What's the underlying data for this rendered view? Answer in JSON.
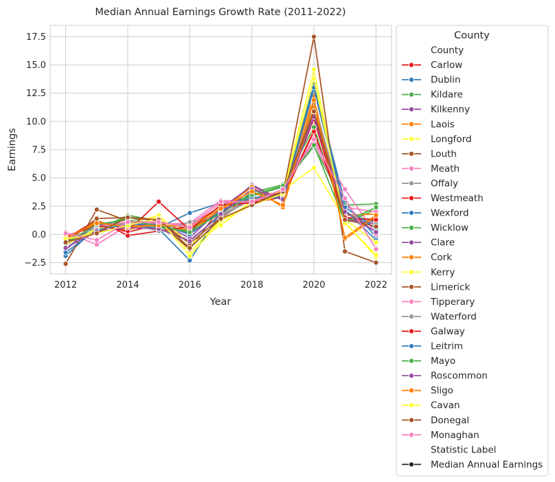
{
  "chart_data": {
    "type": "line",
    "title": "Median Annual Earnings Growth Rate (2011-2022)",
    "xlabel": "Year",
    "ylabel": "Earnings",
    "x": [
      2012,
      2013,
      2014,
      2015,
      2016,
      2017,
      2018,
      2019,
      2020,
      2021,
      2022
    ],
    "xlim": [
      2011.5,
      2022.5
    ],
    "ylim": [
      -3.5,
      18.5
    ],
    "xticks": [
      2012,
      2014,
      2016,
      2018,
      2020,
      2022
    ],
    "yticks": [
      -2.5,
      0.0,
      2.5,
      5.0,
      7.5,
      10.0,
      12.5,
      15.0,
      17.5
    ],
    "ytick_labels": [
      "−2.5",
      "0.0",
      "2.5",
      "5.0",
      "7.5",
      "10.0",
      "12.5",
      "15.0",
      "17.5"
    ],
    "grid": true,
    "legend_placement": "outside-right",
    "legend": {
      "title": "County",
      "hue_header": "County",
      "style_header": "Statistic Label",
      "style_entries": [
        {
          "name": "Median Annual Earnings",
          "color": "#262626"
        }
      ]
    },
    "series": [
      {
        "name": "Carlow",
        "color": "#e41a1c",
        "values": [
          -0.3,
          1.0,
          0.2,
          0.9,
          0.3,
          2.2,
          2.9,
          3.4,
          9.2,
          1.5,
          1.2
        ]
      },
      {
        "name": "Dublin",
        "color": "#377eb8",
        "values": [
          -1.9,
          0.6,
          1.1,
          0.6,
          1.9,
          2.8,
          3.2,
          3.4,
          13.3,
          2.8,
          -0.2
        ]
      },
      {
        "name": "Kildare",
        "color": "#4daf4a",
        "values": [
          -0.6,
          0.4,
          1.7,
          1.2,
          0.5,
          1.8,
          3.7,
          4.4,
          7.8,
          2.6,
          2.7
        ]
      },
      {
        "name": "Kilkenny",
        "color": "#984ea3",
        "values": [
          -0.9,
          0.5,
          0.9,
          0.8,
          0.1,
          2.0,
          4.4,
          3.0,
          10.6,
          1.6,
          0.3
        ]
      },
      {
        "name": "Laois",
        "color": "#ff7f00",
        "values": [
          -0.2,
          0.9,
          0.6,
          0.7,
          0.4,
          1.9,
          3.5,
          3.7,
          12.2,
          -0.4,
          1.5
        ]
      },
      {
        "name": "Longford",
        "color": "#ffff33",
        "values": [
          -0.5,
          0.3,
          0.5,
          1.6,
          -1.6,
          1.3,
          2.7,
          3.8,
          14.6,
          1.1,
          -2.0
        ]
      },
      {
        "name": "Louth",
        "color": "#a65628",
        "values": [
          -2.6,
          2.2,
          1.2,
          1.0,
          -1.3,
          2.4,
          3.1,
          3.6,
          17.5,
          -1.5,
          -2.5
        ]
      },
      {
        "name": "Meath",
        "color": "#f781bf",
        "values": [
          0.2,
          -0.9,
          0.8,
          0.9,
          1.0,
          3.0,
          2.9,
          3.9,
          8.5,
          4.0,
          0.0
        ]
      },
      {
        "name": "Offaly",
        "color": "#999999",
        "values": [
          -1.0,
          0.8,
          1.3,
          0.5,
          -0.5,
          1.7,
          3.3,
          3.2,
          11.5,
          2.0,
          0.8
        ]
      },
      {
        "name": "Westmeath",
        "color": "#e41a1c",
        "values": [
          -0.4,
          1.3,
          -0.1,
          0.3,
          0.7,
          2.5,
          3.0,
          3.3,
          10.2,
          1.2,
          1.4
        ]
      },
      {
        "name": "Wexford",
        "color": "#377eb8",
        "values": [
          -1.3,
          0.9,
          0.9,
          0.5,
          -2.3,
          2.0,
          3.6,
          3.4,
          12.8,
          2.2,
          -0.5
        ]
      },
      {
        "name": "Wicklow",
        "color": "#4daf4a",
        "values": [
          -0.8,
          0.2,
          1.6,
          0.6,
          0.3,
          2.6,
          3.4,
          4.2,
          9.5,
          1.0,
          2.2
        ]
      },
      {
        "name": "Clare",
        "color": "#984ea3",
        "values": [
          -1.4,
          1.1,
          0.7,
          1.0,
          -0.3,
          2.3,
          4.3,
          3.0,
          11.0,
          1.4,
          0.9
        ]
      },
      {
        "name": "Cork",
        "color": "#ff7f00",
        "values": [
          -0.6,
          1.2,
          0.4,
          1.1,
          0.6,
          2.1,
          4.2,
          2.4,
          11.3,
          1.7,
          1.8
        ]
      },
      {
        "name": "Kerry",
        "color": "#ffff33",
        "values": [
          -0.9,
          0.5,
          0.9,
          1.7,
          -0.9,
          0.8,
          3.0,
          3.9,
          5.9,
          1.3,
          -0.7
        ]
      },
      {
        "name": "Limerick",
        "color": "#a65628",
        "values": [
          -0.7,
          1.4,
          1.5,
          1.2,
          -0.8,
          1.5,
          3.2,
          3.7,
          10.8,
          1.8,
          1.1
        ]
      },
      {
        "name": "Tipperary",
        "color": "#f781bf",
        "values": [
          -0.1,
          0.7,
          1.1,
          1.0,
          0.8,
          2.8,
          2.8,
          4.0,
          8.2,
          2.4,
          2.0
        ]
      },
      {
        "name": "Waterford",
        "color": "#999999",
        "values": [
          -0.5,
          0.6,
          1.0,
          0.3,
          1.1,
          1.6,
          3.1,
          3.5,
          11.7,
          1.9,
          1.0
        ]
      },
      {
        "name": "Galway",
        "color": "#e41a1c",
        "values": [
          -0.2,
          0.8,
          0.3,
          2.9,
          0.4,
          2.6,
          2.8,
          3.3,
          9.1,
          1.5,
          1.3
        ]
      },
      {
        "name": "Leitrim",
        "color": "#377eb8",
        "values": [
          -1.6,
          0.4,
          0.9,
          0.9,
          0.0,
          2.1,
          3.3,
          3.2,
          13.0,
          2.4,
          0.5
        ]
      },
      {
        "name": "Mayo",
        "color": "#4daf4a",
        "values": [
          -0.8,
          0.9,
          1.3,
          0.7,
          0.2,
          1.9,
          3.5,
          4.3,
          7.9,
          1.1,
          2.4
        ]
      },
      {
        "name": "Roscommon",
        "color": "#984ea3",
        "values": [
          -1.2,
          0.3,
          0.6,
          0.5,
          -0.6,
          1.8,
          4.0,
          3.1,
          10.4,
          2.0,
          0.2
        ]
      },
      {
        "name": "Sligo",
        "color": "#ff7f00",
        "values": [
          -0.3,
          1.0,
          0.7,
          0.8,
          0.7,
          2.3,
          3.8,
          2.6,
          11.9,
          -0.3,
          1.7
        ]
      },
      {
        "name": "Cavan",
        "color": "#ffff33",
        "values": [
          -0.4,
          0.1,
          0.8,
          1.4,
          -1.9,
          1.2,
          2.6,
          3.6,
          13.8,
          1.0,
          -1.8
        ]
      },
      {
        "name": "Donegal",
        "color": "#a65628",
        "values": [
          -0.7,
          0.1,
          1.5,
          1.3,
          -1.2,
          1.4,
          2.6,
          3.8,
          10.9,
          1.3,
          0.7
        ]
      },
      {
        "name": "Monaghan",
        "color": "#f781bf",
        "values": [
          0.1,
          -0.5,
          1.1,
          1.1,
          0.6,
          2.9,
          2.9,
          4.0,
          8.4,
          3.2,
          -1.3
        ]
      }
    ]
  }
}
